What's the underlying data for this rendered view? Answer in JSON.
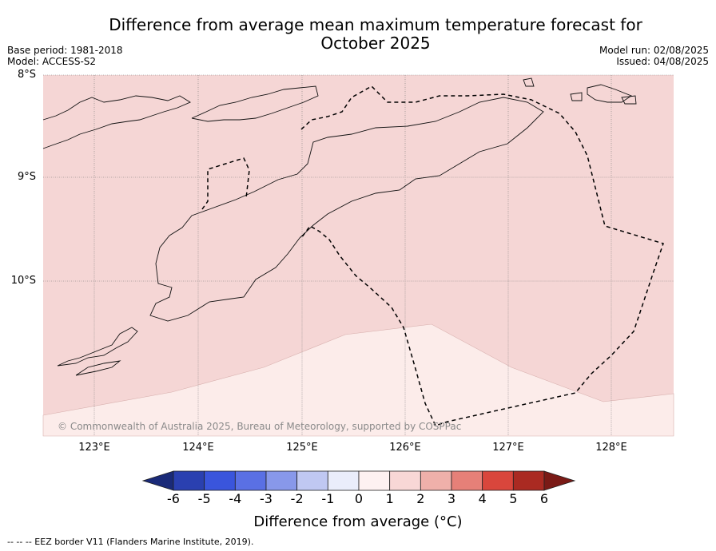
{
  "title": "Difference from average mean maximum temperature forecast for\nOctober 2025",
  "base_period": "Base period: 1981-2018",
  "model": "Model: ACCESS-S2",
  "model_run": "Model run: 02/08/2025",
  "issued": "Issued: 04/08/2025",
  "lat_labels": [
    "8°S",
    "9°S",
    "10°S"
  ],
  "lon_labels": [
    "123°E",
    "124°E",
    "125°E",
    "126°E",
    "127°E",
    "128°E"
  ],
  "copyright": "© Commonwealth of Australia 2025, Bureau of Meteorology, supported by COSPPac",
  "colorbar": {
    "ticks": [
      "-6",
      "-5",
      "-4",
      "-3",
      "-2",
      "-1",
      "0",
      "1",
      "2",
      "3",
      "4",
      "5",
      "6"
    ],
    "colors": [
      "#1a2a78",
      "#2a40b0",
      "#3a55dc",
      "#5a70e4",
      "#8898ea",
      "#c0c8f2",
      "#eaedfb",
      "#fdf1f1",
      "#f8d7d6",
      "#efb0aa",
      "#e68078",
      "#d9463c",
      "#aa2a22",
      "#7a1a16"
    ],
    "label": "Difference from average (°C)"
  },
  "map_fills": {
    "one_to_two": "#f5d6d5",
    "zero_to_one": "#fcecea"
  },
  "footnote": "--  --  -- EEZ border V11 (Flanders Marine Institute, 2019)."
}
